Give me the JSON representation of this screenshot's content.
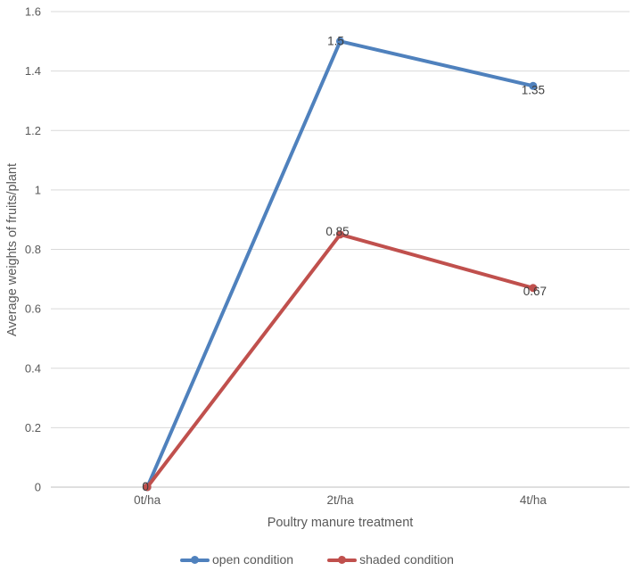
{
  "chart_data": {
    "type": "line",
    "categories": [
      "0t/ha",
      "2t/ha",
      "4t/ha"
    ],
    "series": [
      {
        "name": "open condition",
        "values": [
          0,
          1.5,
          1.35
        ],
        "data_labels": [
          "0",
          "1.5",
          "1.35"
        ],
        "color": "#4F81BD"
      },
      {
        "name": "shaded condition",
        "values": [
          0,
          0.85,
          0.67
        ],
        "data_labels": [
          "0",
          "0.85",
          "0.67"
        ],
        "color": "#C0504D"
      }
    ],
    "title": "",
    "xlabel": "Poultry manure treatment",
    "ylabel": "Average weights of fruits/plant",
    "ylim": [
      0,
      1.6
    ],
    "ytick_step": 0.2,
    "ytick_labels": [
      "0",
      "0.2",
      "0.4",
      "0.6",
      "0.8",
      "1",
      "1.2",
      "1.4",
      "1.6"
    ],
    "grid": "horizontal",
    "legend_position": "bottom",
    "marker": "circle",
    "colors": {
      "gridline": "#D9D9D9",
      "axis_line": "#BFBFBF",
      "tick_label": "#595959",
      "axis_title": "#595959",
      "data_label": "#3F3F3F",
      "background": "#FFFFFF"
    }
  }
}
